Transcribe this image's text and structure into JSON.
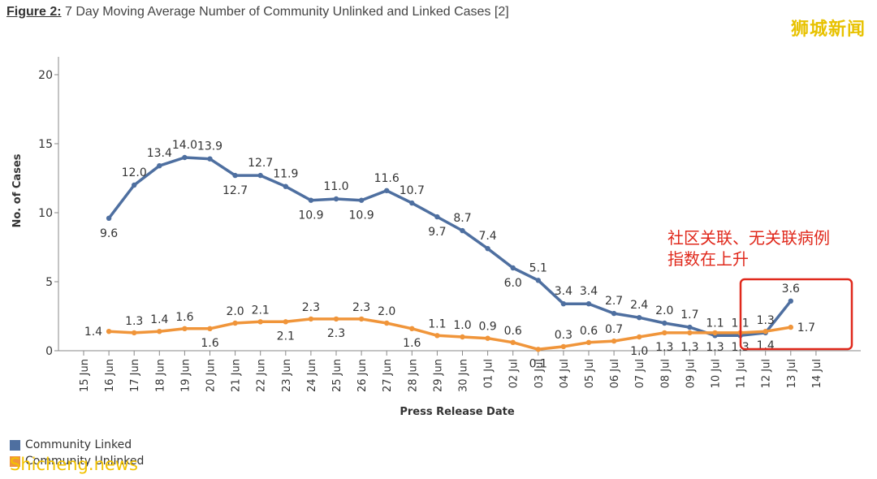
{
  "figure": {
    "label": "Figure 2:",
    "title": "7 Day Moving Average Number of Community Unlinked and Linked Cases [2]"
  },
  "watermark_top": "狮城新闻",
  "watermark_bottom": "Shicheng.news",
  "annotation": {
    "lines": [
      "社区关联、无关联病例",
      "指数在上升"
    ],
    "color": "#e0291c"
  },
  "chart_data": {
    "type": "line",
    "xlabel": "Press Release Date",
    "ylabel": "No. of Cases",
    "ylim": [
      0,
      20
    ],
    "yticks": [
      0,
      5,
      10,
      15,
      20
    ],
    "categories": [
      "15 Jun",
      "16 Jun",
      "17 Jun",
      "18 Jun",
      "19 Jun",
      "20 Jun",
      "21 Jun",
      "22 Jun",
      "23 Jun",
      "24 Jun",
      "25 Jun",
      "26 Jun",
      "27 Jun",
      "28 Jun",
      "29 Jun",
      "30 Jun",
      "01 Jul",
      "02 Jul",
      "03 Jul",
      "04 Jul",
      "05 Jul",
      "06 Jul",
      "07 Jul",
      "08 Jul",
      "09 Jul",
      "10 Jul",
      "11 Jul",
      "12 Jul",
      "13 Jul",
      "14 Jul"
    ],
    "series": [
      {
        "name": "Community Linked",
        "color": "#4e6fa0",
        "values": [
          null,
          9.6,
          12.0,
          13.4,
          14.0,
          13.9,
          12.7,
          12.7,
          11.9,
          10.9,
          11.0,
          10.9,
          11.6,
          10.7,
          9.7,
          8.7,
          7.4,
          6.0,
          5.1,
          3.4,
          3.4,
          2.7,
          2.4,
          2.0,
          1.7,
          1.1,
          1.1,
          1.3,
          3.6,
          null
        ],
        "labels": [
          null,
          "9.6",
          "12.0",
          "13.4",
          "14.0",
          "13.9",
          "12.7",
          "12.7",
          "11.9",
          "10.9",
          "11.0",
          "10.9",
          "11.6",
          "10.7",
          "9.7",
          "8.7",
          "7.4",
          "6.0",
          "5.1",
          "3.4",
          "3.4",
          "2.7",
          "2.4",
          "2.0",
          "1.7",
          "1.1",
          "1.1",
          "1.3",
          "3.6",
          null
        ]
      },
      {
        "name": "Community Unlinked",
        "color": "#f0953a",
        "values": [
          null,
          1.4,
          1.3,
          1.4,
          1.6,
          1.6,
          2.0,
          2.1,
          2.1,
          2.3,
          2.3,
          2.3,
          2.0,
          1.6,
          1.1,
          1.0,
          0.9,
          0.6,
          0.1,
          0.3,
          0.6,
          0.7,
          1.0,
          1.3,
          1.3,
          1.3,
          1.3,
          1.4,
          1.7,
          null
        ],
        "labels": [
          null,
          "1.4",
          "1.3",
          "1.4",
          "1.6",
          "1.6",
          "2.0",
          "2.1",
          "2.1",
          "2.3",
          "2.3",
          "2.3",
          "2.0",
          "1.6",
          "1.1",
          "1.0",
          "0.9",
          "0.6",
          "0.1",
          "0.3",
          "0.6",
          "0.7",
          "1.0",
          "1.3",
          "1.3",
          "1.3",
          "1.3",
          "1.4",
          "1.7",
          null
        ]
      }
    ],
    "legend": [
      "Community Linked",
      "Community Unlinked"
    ],
    "legend_position": "bottom-left",
    "grid": false
  }
}
